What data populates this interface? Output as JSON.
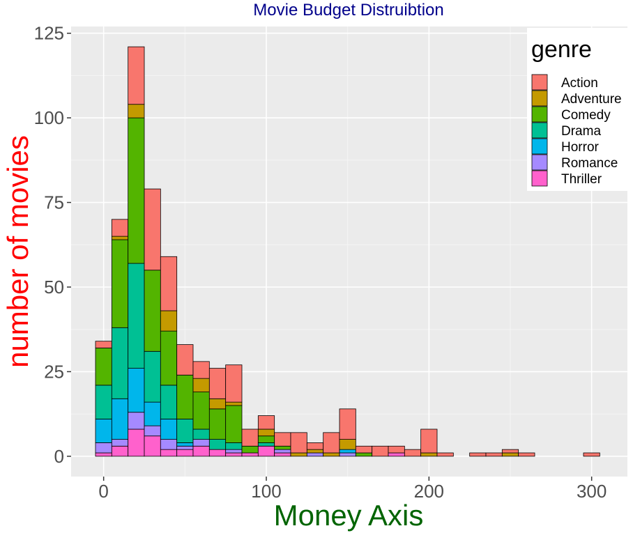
{
  "chart_data": {
    "type": "bar",
    "subtype": "stacked-histogram",
    "title": "Movie Budget Distruibtion",
    "xlabel": "Money Axis",
    "ylabel": "number of movies",
    "xlim": [
      -20,
      322
    ],
    "ylim": [
      -6,
      127
    ],
    "xticks": [
      0,
      100,
      200,
      300
    ],
    "yticks": [
      0,
      25,
      50,
      75,
      100,
      125
    ],
    "xtick_labels": [
      "0",
      "100",
      "200",
      "300"
    ],
    "ytick_labels": [
      "0",
      "25",
      "50",
      "75",
      "100",
      "125"
    ],
    "bin_width": 10,
    "bin_centers": [
      0,
      10,
      20,
      30,
      40,
      50,
      60,
      70,
      80,
      90,
      100,
      110,
      120,
      130,
      140,
      150,
      160,
      170,
      180,
      190,
      200,
      210,
      220,
      230,
      240,
      250,
      260,
      270,
      280,
      290,
      300
    ],
    "legend_title": "genre",
    "legend_position": "top-right",
    "grid": true,
    "series": [
      {
        "name": "Thriller",
        "color": "#FF61CC",
        "values": [
          1,
          3,
          8,
          6,
          2,
          2,
          3,
          2,
          1,
          1,
          3,
          1,
          0,
          0,
          0,
          0,
          0,
          0,
          1,
          0,
          0,
          0,
          0,
          0,
          0,
          0,
          0,
          0,
          0,
          0,
          0
        ]
      },
      {
        "name": "Romance",
        "color": "#A58AFF",
        "values": [
          3,
          2,
          5,
          3,
          3,
          1,
          2,
          0,
          1,
          0,
          0,
          1,
          0,
          1,
          0,
          1,
          0,
          0,
          0,
          0,
          0,
          0,
          0,
          0,
          0,
          0,
          0,
          0,
          0,
          0,
          0
        ]
      },
      {
        "name": "Horror",
        "color": "#00B6EB",
        "values": [
          7,
          12,
          13,
          7,
          6,
          1,
          0,
          0,
          0,
          0,
          0,
          0,
          0,
          0,
          0,
          1,
          0,
          0,
          0,
          0,
          0,
          0,
          0,
          0,
          0,
          0,
          0,
          0,
          0,
          0,
          0
        ]
      },
      {
        "name": "Drama",
        "color": "#00C094",
        "values": [
          10,
          21,
          31,
          15,
          10,
          7,
          3,
          3,
          2,
          0,
          1,
          0,
          0,
          0,
          0,
          0,
          0,
          0,
          0,
          0,
          0,
          0,
          0,
          0,
          0,
          0,
          0,
          0,
          0,
          0,
          0
        ]
      },
      {
        "name": "Comedy",
        "color": "#53B400",
        "values": [
          11,
          26,
          43,
          24,
          16,
          13,
          11,
          9,
          11,
          2,
          2,
          1,
          0,
          0,
          0,
          0,
          1,
          0,
          0,
          0,
          0,
          0,
          0,
          0,
          0,
          0,
          0,
          0,
          0,
          0,
          0
        ]
      },
      {
        "name": "Adventure",
        "color": "#C49A00",
        "values": [
          0,
          1,
          4,
          0,
          6,
          0,
          4,
          3,
          1,
          0,
          2,
          0,
          1,
          1,
          1,
          3,
          0,
          0,
          0,
          0,
          1,
          0,
          0,
          0,
          0,
          1,
          0,
          0,
          0,
          0,
          0
        ]
      },
      {
        "name": "Action",
        "color": "#F8766D",
        "values": [
          2,
          5,
          17,
          24,
          16,
          9,
          5,
          9,
          11,
          5,
          4,
          4,
          6,
          2,
          6,
          9,
          2,
          3,
          2,
          2,
          7,
          1,
          0,
          1,
          1,
          1,
          1,
          0,
          0,
          0,
          1
        ]
      }
    ],
    "legend_order": [
      "Action",
      "Adventure",
      "Comedy",
      "Drama",
      "Horror",
      "Romance",
      "Thriller"
    ],
    "colors": {
      "panel_background": "#EBEBEB",
      "grid_major": "#FFFFFF",
      "grid_minor": "#F5F5F5",
      "tick_label": "#4D4D4D",
      "title": "#00008B",
      "xlabel": "#006400",
      "ylabel": "#FF0000",
      "bar_outline": "#000000"
    }
  }
}
